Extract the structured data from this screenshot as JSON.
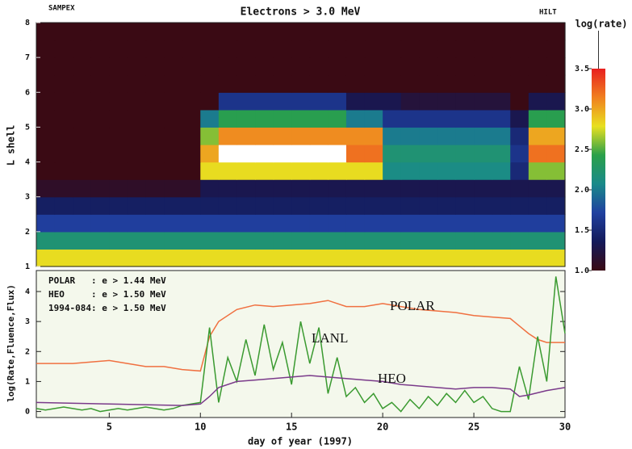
{
  "chart_data": [
    {
      "type": "heatmap",
      "title": "Electrons > 3.0 MeV",
      "left_label": "SAMPEX",
      "right_label": "HILT",
      "ylabel": "L shell",
      "xlim": [
        1,
        30
      ],
      "ylim": [
        1,
        8
      ],
      "yticks": [
        1,
        2,
        3,
        4,
        5,
        6,
        7,
        8
      ],
      "xbins": [
        1,
        2,
        3,
        4,
        5,
        6,
        7,
        8,
        9,
        10,
        11,
        12,
        13,
        14,
        15,
        16,
        17,
        18,
        19,
        20,
        21,
        22,
        23,
        24,
        25,
        26,
        27,
        28,
        29,
        30
      ],
      "ybins": [
        1,
        1.5,
        2,
        2.5,
        3,
        3.5,
        4,
        4.5,
        5,
        5.5,
        6,
        6.5,
        7,
        7.5,
        8
      ],
      "z": [
        [
          2.8,
          2.8,
          2.8,
          2.8,
          2.8,
          2.8,
          2.8,
          2.8,
          2.8,
          2.8,
          2.8,
          2.8,
          2.8,
          2.8,
          2.8,
          2.8,
          2.8,
          2.8,
          2.8,
          2.8,
          2.8,
          2.8,
          2.8,
          2.8,
          2.8,
          2.8,
          2.8,
          2.8,
          2.8
        ],
        [
          2.2,
          2.2,
          2.2,
          2.2,
          2.2,
          2.2,
          2.2,
          2.2,
          2.2,
          2.2,
          2.2,
          2.2,
          2.2,
          2.2,
          2.2,
          2.2,
          2.2,
          2.2,
          2.2,
          2.2,
          2.2,
          2.2,
          2.2,
          2.2,
          2.2,
          2.2,
          2.2,
          2.2,
          2.2
        ],
        [
          1.7,
          1.7,
          1.7,
          1.7,
          1.7,
          1.7,
          1.7,
          1.7,
          1.7,
          1.7,
          1.7,
          1.7,
          1.7,
          1.7,
          1.7,
          1.7,
          1.7,
          1.7,
          1.7,
          1.7,
          1.7,
          1.7,
          1.7,
          1.7,
          1.7,
          1.7,
          1.7,
          1.7,
          1.7
        ],
        [
          1.4,
          1.4,
          1.4,
          1.4,
          1.4,
          1.4,
          1.4,
          1.4,
          1.4,
          1.4,
          1.4,
          1.4,
          1.4,
          1.4,
          1.4,
          1.4,
          1.4,
          1.4,
          1.4,
          1.4,
          1.4,
          1.4,
          1.4,
          1.4,
          1.4,
          1.4,
          1.4,
          1.4,
          1.4
        ],
        [
          1.1,
          1.1,
          1.1,
          1.1,
          1.1,
          1.1,
          1.1,
          1.1,
          1.1,
          1.3,
          1.3,
          1.3,
          1.3,
          1.3,
          1.3,
          1.3,
          1.3,
          1.3,
          1.3,
          1.3,
          1.3,
          1.3,
          1.3,
          1.3,
          1.3,
          1.3,
          1.3,
          1.3,
          1.3
        ],
        [
          1.0,
          1.0,
          1.0,
          1.0,
          1.0,
          1.0,
          1.0,
          1.0,
          1.0,
          2.8,
          2.8,
          2.8,
          2.8,
          2.8,
          2.8,
          2.8,
          2.8,
          2.8,
          2.8,
          2.1,
          2.1,
          2.1,
          2.1,
          2.1,
          2.1,
          2.1,
          1.5,
          2.6,
          2.6
        ],
        [
          1.0,
          1.0,
          1.0,
          1.0,
          1.0,
          1.0,
          1.0,
          1.0,
          1.0,
          3.0,
          3.6,
          3.6,
          3.6,
          3.6,
          3.6,
          3.6,
          3.6,
          3.2,
          3.2,
          2.2,
          2.2,
          2.2,
          2.2,
          2.2,
          2.2,
          2.2,
          1.6,
          3.2,
          3.2
        ],
        [
          1.0,
          1.0,
          1.0,
          1.0,
          1.0,
          1.0,
          1.0,
          1.0,
          1.0,
          2.6,
          3.1,
          3.1,
          3.1,
          3.1,
          3.1,
          3.1,
          3.1,
          3.1,
          3.1,
          2.0,
          2.0,
          2.0,
          2.0,
          2.0,
          2.0,
          2.0,
          1.5,
          3.0,
          3.0
        ],
        [
          1.0,
          1.0,
          1.0,
          1.0,
          1.0,
          1.0,
          1.0,
          1.0,
          1.0,
          2.0,
          2.4,
          2.4,
          2.4,
          2.4,
          2.4,
          2.4,
          2.4,
          2.0,
          2.0,
          1.6,
          1.6,
          1.6,
          1.6,
          1.6,
          1.6,
          1.6,
          1.3,
          2.4,
          2.4
        ],
        [
          1.0,
          1.0,
          1.0,
          1.0,
          1.0,
          1.0,
          1.0,
          1.0,
          1.0,
          1.0,
          1.6,
          1.6,
          1.6,
          1.6,
          1.6,
          1.6,
          1.6,
          1.3,
          1.3,
          1.3,
          1.2,
          1.2,
          1.2,
          1.2,
          1.2,
          1.2,
          1.0,
          1.3,
          1.3
        ],
        [
          1.0,
          1.0,
          1.0,
          1.0,
          1.0,
          1.0,
          1.0,
          1.0,
          1.0,
          1.0,
          1.0,
          1.0,
          1.0,
          1.0,
          1.0,
          1.0,
          1.0,
          1.0,
          1.0,
          1.0,
          1.0,
          1.0,
          1.0,
          1.0,
          1.0,
          1.0,
          1.0,
          1.0,
          1.0
        ],
        [
          1.0,
          1.0,
          1.0,
          1.0,
          1.0,
          1.0,
          1.0,
          1.0,
          1.0,
          1.0,
          1.0,
          1.0,
          1.0,
          1.0,
          1.0,
          1.0,
          1.0,
          1.0,
          1.0,
          1.0,
          1.0,
          1.0,
          1.0,
          1.0,
          1.0,
          1.0,
          1.0,
          1.0,
          1.0
        ],
        [
          1.0,
          1.0,
          1.0,
          1.0,
          1.0,
          1.0,
          1.0,
          1.0,
          1.0,
          1.0,
          1.0,
          1.0,
          1.0,
          1.0,
          1.0,
          1.0,
          1.0,
          1.0,
          1.0,
          1.0,
          1.0,
          1.0,
          1.0,
          1.0,
          1.0,
          1.0,
          1.0,
          1.0,
          1.0
        ],
        [
          1.0,
          1.0,
          1.0,
          1.0,
          1.0,
          1.0,
          1.0,
          1.0,
          1.0,
          1.0,
          1.0,
          1.0,
          1.0,
          1.0,
          1.0,
          1.0,
          1.0,
          1.0,
          1.0,
          1.0,
          1.0,
          1.0,
          1.0,
          1.0,
          1.0,
          1.0,
          1.0,
          1.0,
          1.0
        ]
      ],
      "colorbar_label": "log(rate)",
      "clim": [
        1,
        3.5
      ],
      "colormap": [
        "#3a0a14",
        "#141a5a",
        "#2040a0",
        "#1a8a8a",
        "#2aa04a",
        "#e8e020",
        "#f08020",
        "#e82020"
      ],
      "over_color": "#ffffff",
      "cticks": [
        {
          "value": 1,
          "label": "1.0"
        },
        {
          "value": 1.5,
          "label": "1.5"
        },
        {
          "value": 2,
          "label": "2.0"
        },
        {
          "value": 2.5,
          "label": "2.5"
        },
        {
          "value": 3,
          "label": "3.0"
        },
        {
          "value": 3.5,
          "label": "3.5"
        }
      ]
    },
    {
      "type": "line",
      "xlabel": "day of year (1997)",
      "ylabel": "log(Rate,Fluence,Flux)",
      "xlim": [
        1,
        30
      ],
      "ylim": [
        -0.2,
        4.7
      ],
      "xticks": [
        5,
        10,
        15,
        20,
        25,
        30
      ],
      "yticks": [
        0,
        1,
        2,
        3,
        4
      ],
      "notes": [
        "POLAR   : e > 1.44 MeV",
        "HEO     : e > 1.50 MeV",
        "1994-084: e > 1.50 MeV"
      ],
      "series": [
        {
          "name": "POLAR",
          "color": "#f07040",
          "x": [
            1,
            3,
            5,
            6,
            7,
            8,
            9,
            10,
            10.5,
            11,
            12,
            13,
            14,
            15,
            16,
            17,
            18,
            19,
            20,
            21,
            22,
            23,
            24,
            25,
            26,
            27,
            28,
            28.5,
            29,
            30
          ],
          "values": [
            1.6,
            1.6,
            1.7,
            1.6,
            1.5,
            1.5,
            1.4,
            1.35,
            2.5,
            3.0,
            3.4,
            3.55,
            3.5,
            3.55,
            3.6,
            3.7,
            3.5,
            3.5,
            3.6,
            3.5,
            3.4,
            3.35,
            3.3,
            3.2,
            3.15,
            3.1,
            2.6,
            2.4,
            2.3,
            2.3
          ]
        },
        {
          "name": "LANL",
          "color": "#3a9a30",
          "x": [
            1,
            1.5,
            2,
            2.5,
            3,
            3.5,
            4,
            4.5,
            5,
            5.5,
            6,
            6.5,
            7,
            7.5,
            8,
            8.5,
            9,
            9.5,
            10,
            10.5,
            11,
            11.5,
            12,
            12.5,
            13,
            13.5,
            14,
            14.5,
            15,
            15.5,
            16,
            16.5,
            17,
            17.5,
            18,
            18.5,
            19,
            19.5,
            20,
            20.5,
            21,
            21.5,
            22,
            22.5,
            23,
            23.5,
            24,
            24.5,
            25,
            25.5,
            26,
            26.5,
            27,
            27.5,
            28,
            28.5,
            29,
            29.5,
            30
          ],
          "values": [
            0.1,
            0.05,
            0.1,
            0.15,
            0.1,
            0.05,
            0.1,
            0.0,
            0.05,
            0.1,
            0.05,
            0.1,
            0.15,
            0.1,
            0.05,
            0.1,
            0.2,
            0.25,
            0.3,
            2.8,
            0.3,
            1.8,
            1.0,
            2.4,
            1.2,
            2.9,
            1.4,
            2.3,
            0.9,
            3.0,
            1.6,
            2.8,
            0.6,
            1.8,
            0.5,
            0.8,
            0.3,
            0.6,
            0.1,
            0.3,
            0.0,
            0.4,
            0.1,
            0.5,
            0.2,
            0.6,
            0.3,
            0.7,
            0.3,
            0.5,
            0.1,
            0.0,
            0.0,
            1.5,
            0.4,
            2.5,
            1.0,
            4.5,
            2.6
          ]
        },
        {
          "name": "HEO",
          "color": "#7a3a8a",
          "x": [
            1,
            5,
            9,
            10,
            10.5,
            11,
            12,
            13,
            14,
            15,
            16,
            17,
            18,
            19,
            20,
            21,
            22,
            23,
            24,
            25,
            26,
            27,
            27.5,
            28,
            29,
            30
          ],
          "values": [
            0.3,
            0.25,
            0.2,
            0.25,
            0.5,
            0.8,
            1.0,
            1.05,
            1.1,
            1.15,
            1.2,
            1.15,
            1.1,
            1.05,
            1.0,
            0.9,
            0.85,
            0.8,
            0.75,
            0.8,
            0.8,
            0.75,
            0.5,
            0.55,
            0.7,
            0.8
          ]
        }
      ]
    }
  ]
}
